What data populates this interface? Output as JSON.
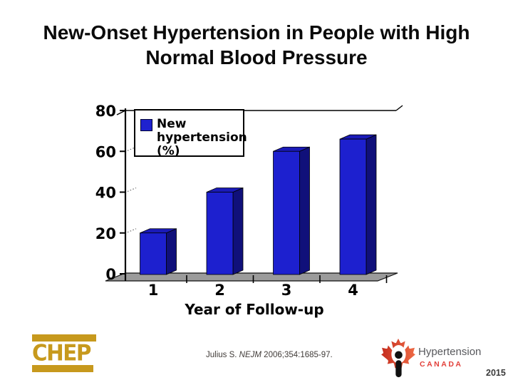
{
  "slide": {
    "title": "New-Onset Hypertension in People with High\nNormal Blood Pressure"
  },
  "chart_data": {
    "type": "bar",
    "style": "3d-column",
    "categories": [
      "1",
      "2",
      "3",
      "4"
    ],
    "values": [
      20,
      40,
      60,
      66
    ],
    "series_name": "New hypertension (%)",
    "legend_label": "New\nhypertension\n(%)",
    "legend_position": "top-left",
    "title": "",
    "xlabel": "Year of Follow-up",
    "ylabel": "",
    "ylim": [
      0,
      80
    ],
    "yticks": [
      0,
      20,
      40,
      60,
      80
    ],
    "grid": false,
    "colors": {
      "bar_front": "#1d20cf",
      "bar_side": "#10107a",
      "bar_top": "#1a1ab8",
      "floor": "#9b9b9b",
      "axis": "#000000"
    }
  },
  "footer": {
    "chep_logo_text": "CHEP",
    "citation_author": "Julius S. ",
    "citation_journal": "NEJM",
    "citation_rest": " 2006;354:1685-97.",
    "hc_name": "Hypertension",
    "hc_country": "CANADA",
    "year": "2015"
  },
  "brand_colors": {
    "chep_gold": "#c7991d",
    "leaf_red": "#d6382c",
    "hc_gray": "#57585c",
    "hc_red": "#e2403a"
  }
}
